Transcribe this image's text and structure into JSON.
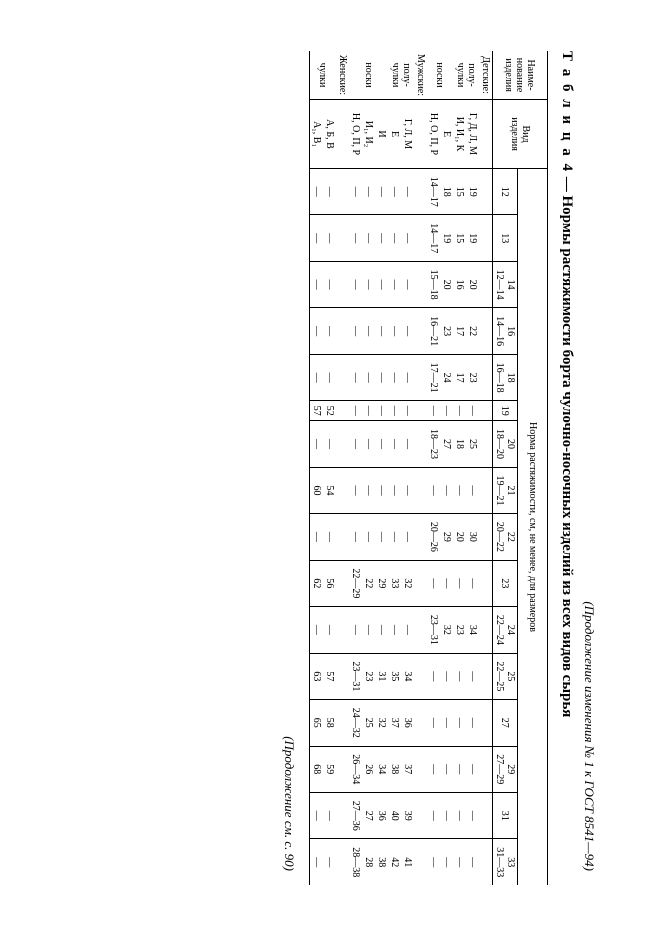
{
  "top_note": "(Продолжение изменения № 1 к ГОСТ 8541—94)",
  "bottom_note": "(Продолжение см. с. 90)",
  "caption_prefix": "Т а б л и ц а  4",
  "caption_title": " — Нормы растяжимости борта чулочно-носочных изделий из всех видов сырья",
  "head_name": "Наиме-\nнование\nизделия",
  "head_type": "Вид\nизделия",
  "head_norm": "Норма растяжимости, см, не менее, для размеров",
  "sizes_top": [
    "12",
    "13",
    "14",
    "16",
    "18",
    "19",
    "20",
    "21",
    "22",
    "23",
    "24",
    "25",
    "27",
    "29",
    "31",
    "33"
  ],
  "sizes_sub": [
    "",
    "",
    "12—14",
    "14—16",
    "16—18",
    "",
    "18—20",
    "19—21",
    "20—22",
    "",
    "22—24",
    "22—25",
    "",
    "27—29",
    "",
    "31—33"
  ],
  "sections": [
    {
      "title": "Детские:",
      "subs": [
        {
          "sub": "полу-\nчулки",
          "rows": [
            {
              "type": "Г, Д, Л, М",
              "v": [
                "19",
                "19",
                "20",
                "22",
                "23",
                "—",
                "25",
                "—",
                "30",
                "—",
                "34",
                "—",
                "—",
                "—",
                "—",
                "—"
              ]
            },
            {
              "type": "И, И₁, К",
              "v": [
                "15",
                "15",
                "16",
                "17",
                "17",
                "—",
                "18",
                "—",
                "20",
                "—",
                "23",
                "—",
                "—",
                "—",
                "—",
                "—"
              ]
            }
          ]
        },
        {
          "sub": "носки",
          "rows": [
            {
              "type": "Е",
              "v": [
                "18",
                "19",
                "20",
                "23",
                "24",
                "—",
                "27",
                "—",
                "29",
                "—",
                "32",
                "—",
                "—",
                "—",
                "—",
                "—"
              ]
            },
            {
              "type": "Н, О, П, Р",
              "v": [
                "14—17",
                "14—17",
                "15—18",
                "16—21",
                "17—21",
                "—",
                "18—23",
                "—",
                "20—26",
                "—",
                "23—31",
                "—",
                "—",
                "—",
                "—",
                "—"
              ]
            }
          ]
        }
      ]
    },
    {
      "title": "Мужские:",
      "subs": [
        {
          "sub": "полу-\nчулки",
          "rows": [
            {
              "type": "Г, Л, М",
              "v": [
                "—",
                "—",
                "—",
                "—",
                "—",
                "—",
                "—",
                "—",
                "—",
                "32",
                "—",
                "34",
                "36",
                "37",
                "39",
                "41"
              ]
            },
            {
              "type": "Е",
              "v": [
                "—",
                "—",
                "—",
                "—",
                "—",
                "—",
                "—",
                "—",
                "—",
                "33",
                "—",
                "35",
                "37",
                "38",
                "40",
                "42"
              ]
            }
          ]
        },
        {
          "sub": "носки",
          "rows": [
            {
              "type": "И",
              "v": [
                "—",
                "—",
                "—",
                "—",
                "—",
                "—",
                "—",
                "—",
                "—",
                "29",
                "—",
                "31",
                "32",
                "34",
                "36",
                "38"
              ]
            },
            {
              "type": "И₁, И₂",
              "v": [
                "—",
                "—",
                "—",
                "—",
                "—",
                "—",
                "—",
                "—",
                "—",
                "22",
                "—",
                "23",
                "25",
                "26",
                "27",
                "28"
              ]
            },
            {
              "type": "Н, О, П, Р",
              "v": [
                "—",
                "—",
                "—",
                "—",
                "—",
                "—",
                "—",
                "—",
                "—",
                "22—29",
                "—",
                "23—31",
                "24—32",
                "26—34",
                "27—36",
                "28—38"
              ]
            }
          ]
        }
      ]
    },
    {
      "title": "Женские:",
      "subs": [
        {
          "sub": "чулки",
          "rows": [
            {
              "type": "А, Б, В",
              "v": [
                "—",
                "—",
                "—",
                "—",
                "—",
                "52",
                "—",
                "54",
                "—",
                "56",
                "—",
                "57",
                "58",
                "59",
                "—",
                "—"
              ]
            },
            {
              "type": "А₁, В₁",
              "v": [
                "—",
                "—",
                "—",
                "—",
                "—",
                "57",
                "—",
                "60",
                "—",
                "62",
                "—",
                "63",
                "65",
                "68",
                "—",
                "—"
              ]
            }
          ]
        }
      ]
    }
  ]
}
